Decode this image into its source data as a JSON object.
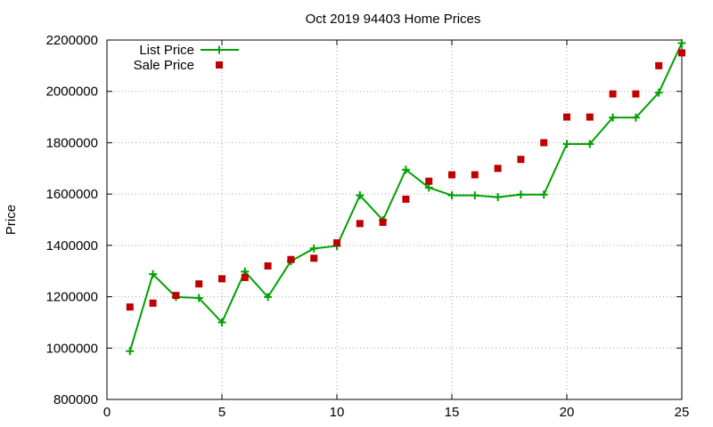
{
  "chart_data": {
    "type": "line",
    "title": "Oct 2019 94403 Home Prices",
    "xlabel": "",
    "ylabel": "Price",
    "xlim": [
      0,
      25
    ],
    "ylim": [
      800000,
      2200000
    ],
    "x_ticks": [
      "0",
      "5",
      "10",
      "15",
      "20",
      "25"
    ],
    "x_tick_values": [
      0,
      5,
      10,
      15,
      20,
      25
    ],
    "y_ticks": [
      "800000",
      "1000000",
      "1200000",
      "1400000",
      "1600000",
      "1800000",
      "2000000",
      "2200000"
    ],
    "y_tick_values": [
      800000,
      1000000,
      1200000,
      1400000,
      1600000,
      1800000,
      2000000,
      2200000
    ],
    "grid": true,
    "legend_position": "top-left",
    "series": [
      {
        "name": "List Price",
        "style": "lines+points",
        "marker": "plus",
        "color": "#00a000",
        "x": [
          1,
          2,
          3,
          4,
          5,
          6,
          7,
          8,
          9,
          10,
          11,
          12,
          13,
          14,
          15,
          16,
          17,
          18,
          19,
          20,
          21,
          22,
          23,
          24,
          25
        ],
        "y": [
          988000,
          1288000,
          1199000,
          1195000,
          1100000,
          1298000,
          1199000,
          1339000,
          1388000,
          1398000,
          1595000,
          1498000,
          1695000,
          1625000,
          1595000,
          1595000,
          1588000,
          1598000,
          1598000,
          1795000,
          1795000,
          1898000,
          1898000,
          1995000,
          2188000
        ]
      },
      {
        "name": "Sale Price",
        "style": "points",
        "marker": "square",
        "color": "#c00000",
        "x": [
          1,
          2,
          3,
          4,
          5,
          6,
          7,
          8,
          9,
          10,
          11,
          12,
          13,
          14,
          15,
          16,
          17,
          18,
          19,
          20,
          21,
          22,
          23,
          24,
          25
        ],
        "y": [
          1160000,
          1175000,
          1205000,
          1250000,
          1270000,
          1275000,
          1320000,
          1345000,
          1350000,
          1410000,
          1485000,
          1490000,
          1580000,
          1650000,
          1675000,
          1675000,
          1700000,
          1735000,
          1800000,
          1900000,
          1900000,
          1990000,
          1990000,
          2100000,
          2150000
        ]
      }
    ]
  }
}
